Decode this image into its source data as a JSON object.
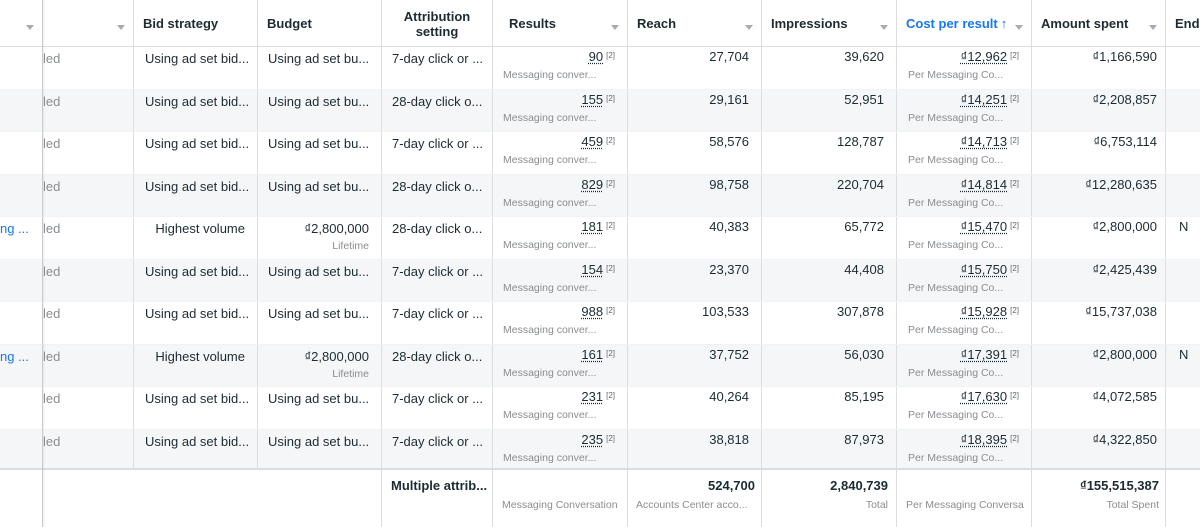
{
  "headers": {
    "col0": "",
    "col1": "",
    "bid_strategy": "Bid strategy",
    "budget": "Budget",
    "attribution": "Attribution setting",
    "results": "Results",
    "reach": "Reach",
    "impressions": "Impressions",
    "cost_per_result": "Cost per result",
    "cost_sort_arrow": "↑",
    "amount_spent": "Amount spent",
    "ends": "Ends"
  },
  "footnote_mark": "[2]",
  "rows": [
    {
      "name": "",
      "delivery": "led",
      "bid": "Using ad set bid...",
      "budget": "Using ad set bu...",
      "budget_sub": "",
      "attr": "7-day click or ...",
      "results": "90",
      "results_sub": "Messaging conver...",
      "reach": "27,704",
      "impressions": "39,620",
      "cpr": "₫12,962",
      "cpr_sub": "Per Messaging Co...",
      "spent": "₫1,166,590",
      "ends": ""
    },
    {
      "name": "",
      "delivery": "led",
      "bid": "Using ad set bid...",
      "budget": "Using ad set bu...",
      "budget_sub": "",
      "attr": "28-day click o...",
      "results": "155",
      "results_sub": "Messaging conver...",
      "reach": "29,161",
      "impressions": "52,951",
      "cpr": "₫14,251",
      "cpr_sub": "Per Messaging Co...",
      "spent": "₫2,208,857",
      "ends": ""
    },
    {
      "name": "",
      "delivery": "led",
      "bid": "Using ad set bid...",
      "budget": "Using ad set bu...",
      "budget_sub": "",
      "attr": "7-day click or ...",
      "results": "459",
      "results_sub": "Messaging conver...",
      "reach": "58,576",
      "impressions": "128,787",
      "cpr": "₫14,713",
      "cpr_sub": "Per Messaging Co...",
      "spent": "₫6,753,114",
      "ends": ""
    },
    {
      "name": "",
      "delivery": "led",
      "bid": "Using ad set bid...",
      "budget": "Using ad set bu...",
      "budget_sub": "",
      "attr": "28-day click o...",
      "results": "829",
      "results_sub": "Messaging conver...",
      "reach": "98,758",
      "impressions": "220,704",
      "cpr": "₫14,814",
      "cpr_sub": "Per Messaging Co...",
      "spent": "₫12,280,635",
      "ends": ""
    },
    {
      "name": "ng ...",
      "delivery": "led",
      "bid": "Highest volume",
      "budget": "₫2,800,000",
      "budget_sub": "Lifetime",
      "attr": "28-day click o...",
      "results": "181",
      "results_sub": "Messaging conver...",
      "reach": "40,383",
      "impressions": "65,772",
      "cpr": "₫15,470",
      "cpr_sub": "Per Messaging Co...",
      "spent": "₫2,800,000",
      "ends": "N"
    },
    {
      "name": "",
      "delivery": "led",
      "bid": "Using ad set bid...",
      "budget": "Using ad set bu...",
      "budget_sub": "",
      "attr": "7-day click or ...",
      "results": "154",
      "results_sub": "Messaging conver...",
      "reach": "23,370",
      "impressions": "44,408",
      "cpr": "₫15,750",
      "cpr_sub": "Per Messaging Co...",
      "spent": "₫2,425,439",
      "ends": ""
    },
    {
      "name": "",
      "delivery": "led",
      "bid": "Using ad set bid...",
      "budget": "Using ad set bu...",
      "budget_sub": "",
      "attr": "7-day click or ...",
      "results": "988",
      "results_sub": "Messaging conver...",
      "reach": "103,533",
      "impressions": "307,878",
      "cpr": "₫15,928",
      "cpr_sub": "Per Messaging Co...",
      "spent": "₫15,737,038",
      "ends": ""
    },
    {
      "name": "ng ...",
      "delivery": "led",
      "bid": "Highest volume",
      "budget": "₫2,800,000",
      "budget_sub": "Lifetime",
      "attr": "28-day click o...",
      "results": "161",
      "results_sub": "Messaging conver...",
      "reach": "37,752",
      "impressions": "56,030",
      "cpr": "₫17,391",
      "cpr_sub": "Per Messaging Co...",
      "spent": "₫2,800,000",
      "ends": "N"
    },
    {
      "name": "",
      "delivery": "led",
      "bid": "Using ad set bid...",
      "budget": "Using ad set bu...",
      "budget_sub": "",
      "attr": "7-day click or ...",
      "results": "231",
      "results_sub": "Messaging conver...",
      "reach": "40,264",
      "impressions": "85,195",
      "cpr": "₫17,630",
      "cpr_sub": "Per Messaging Co...",
      "spent": "₫4,072,585",
      "ends": ""
    },
    {
      "name": "",
      "delivery": "led",
      "bid": "Using ad set bid...",
      "budget": "Using ad set bu...",
      "budget_sub": "",
      "attr": "7-day click or ...",
      "results": "235",
      "results_sub": "Messaging conver...",
      "reach": "38,818",
      "impressions": "87,973",
      "cpr": "₫18,395",
      "cpr_sub": "Per Messaging Co...",
      "spent": "₫4,322,850",
      "ends": ""
    }
  ],
  "footer": {
    "attribution": "Multiple attrib...",
    "results_label": "Messaging Conversation",
    "reach": "524,700",
    "reach_label": "Accounts Center acco...",
    "impressions": "2,840,739",
    "impressions_label": "Total",
    "cpr_label": "Per Messaging Conversa",
    "spent": "₫155,515,387",
    "spent_label": "Total Spent"
  }
}
